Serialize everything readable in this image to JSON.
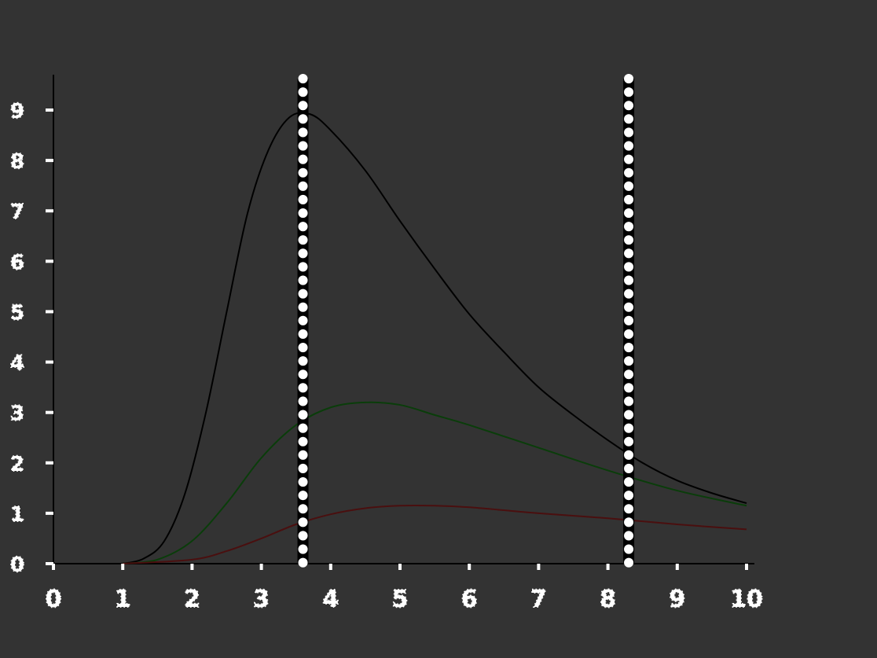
{
  "chart_data": {
    "type": "line",
    "title": "",
    "xlabel": "",
    "ylabel": "",
    "xlim": [
      0,
      10
    ],
    "ylim": [
      0,
      9
    ],
    "x_ticks": [
      "0",
      "1",
      "2",
      "3",
      "4",
      "5",
      "6",
      "7",
      "8",
      "9",
      "10"
    ],
    "y_ticks": [
      "0",
      "1",
      "2",
      "3",
      "4",
      "5",
      "6",
      "7",
      "8",
      "9"
    ],
    "grid": false,
    "legend": "right",
    "vertical_lines": [
      3.6,
      8.3
    ],
    "annotation": "",
    "series": [
      {
        "name": "",
        "color": "#000000",
        "x": [
          1.0,
          1.3,
          1.6,
          1.9,
          2.2,
          2.5,
          2.8,
          3.1,
          3.4,
          3.7,
          4.0,
          4.5,
          5.0,
          5.5,
          6.0,
          6.5,
          7.0,
          7.5,
          8.0,
          8.5,
          9.0,
          9.5,
          10.0
        ],
        "y": [
          0.0,
          0.1,
          0.45,
          1.4,
          3.0,
          5.0,
          6.95,
          8.2,
          8.85,
          8.92,
          8.6,
          7.8,
          6.8,
          5.85,
          4.95,
          4.2,
          3.5,
          2.95,
          2.45,
          2.0,
          1.65,
          1.4,
          1.2
        ]
      },
      {
        "name": "",
        "color": "#0a3d0a",
        "x": [
          1.0,
          1.5,
          2.0,
          2.5,
          3.0,
          3.5,
          4.0,
          4.5,
          5.0,
          5.5,
          6.0,
          7.0,
          8.0,
          9.0,
          10.0
        ],
        "y": [
          0.0,
          0.08,
          0.45,
          1.2,
          2.1,
          2.75,
          3.1,
          3.2,
          3.15,
          2.95,
          2.75,
          2.3,
          1.85,
          1.45,
          1.15
        ]
      },
      {
        "name": "",
        "color": "#4a0f0f",
        "x": [
          1.0,
          2.0,
          2.5,
          3.0,
          3.5,
          4.0,
          4.5,
          5.0,
          5.5,
          6.0,
          6.5,
          7.0,
          8.0,
          9.0,
          10.0
        ],
        "y": [
          0.0,
          0.08,
          0.25,
          0.5,
          0.78,
          0.98,
          1.1,
          1.15,
          1.15,
          1.12,
          1.06,
          1.0,
          0.9,
          0.78,
          0.68
        ]
      }
    ]
  }
}
